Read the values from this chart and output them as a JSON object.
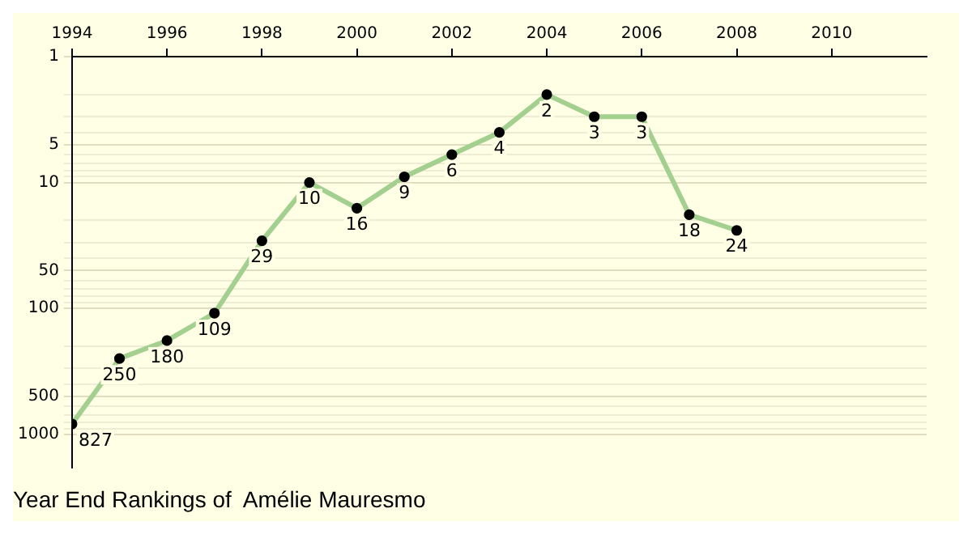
{
  "chart_data": {
    "type": "line",
    "title": "Year End Rankings of  Amélie Mauresmo",
    "x": [
      1994,
      1995,
      1996,
      1997,
      1998,
      1999,
      2000,
      2001,
      2002,
      2003,
      2004,
      2005,
      2006,
      2007,
      2008
    ],
    "values": [
      827,
      250,
      180,
      109,
      29,
      10,
      16,
      9,
      6,
      4,
      2,
      3,
      3,
      18,
      24
    ],
    "color": "#a3cf8f",
    "marker": "circle",
    "line_style": "solid",
    "data_labels": true,
    "log": true,
    "grid": "y",
    "xlim": [
      1994,
      2012
    ],
    "xticks": [
      1994,
      1996,
      1998,
      2000,
      2002,
      2004,
      2006,
      2008,
      2010
    ],
    "ylim": [
      1850,
      1
    ],
    "yticks": [
      1,
      {
        "value": 2,
        "label": null
      },
      {
        "value": 3,
        "label": null
      },
      {
        "value": 4,
        "label": null
      },
      5,
      {
        "value": 6,
        "label": null
      },
      {
        "value": 7,
        "label": null
      },
      {
        "value": 8,
        "label": null
      },
      {
        "value": 9,
        "label": null
      },
      10,
      {
        "value": 20,
        "label": null
      },
      {
        "value": 30,
        "label": null
      },
      {
        "value": 40,
        "label": null
      },
      50,
      {
        "value": 60,
        "label": null
      },
      {
        "value": 70,
        "label": null
      },
      {
        "value": 80,
        "label": null
      },
      {
        "value": 90,
        "label": null
      },
      100,
      {
        "value": 200,
        "label": null
      },
      {
        "value": 300,
        "label": null
      },
      {
        "value": 400,
        "label": null
      },
      500,
      {
        "value": 600,
        "label": null
      },
      {
        "value": 700,
        "label": null
      },
      {
        "value": 800,
        "label": null
      },
      {
        "value": 900,
        "label": null
      },
      1000
    ]
  }
}
